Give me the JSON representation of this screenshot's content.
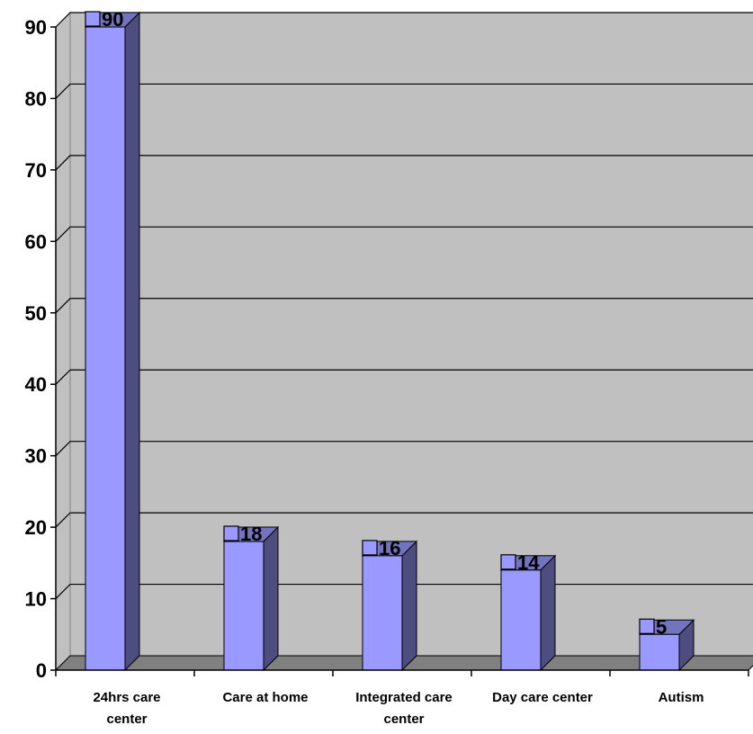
{
  "chart_data": {
    "type": "bar",
    "categories": [
      "24hrs care center",
      "Care at home",
      "Integrated care center",
      "Day care center",
      "Autism"
    ],
    "category_lines": [
      [
        "24hrs care",
        "center"
      ],
      [
        "Care at home"
      ],
      [
        "Integrated care",
        "center"
      ],
      [
        "Day care center"
      ],
      [
        "Autism"
      ]
    ],
    "values": [
      90,
      18,
      16,
      14,
      5
    ],
    "data_labels": [
      "90",
      "18",
      "16",
      "14",
      "5"
    ],
    "ylim": [
      0,
      90
    ],
    "yticks": [
      0,
      10,
      20,
      30,
      40,
      50,
      60,
      70,
      80,
      90
    ],
    "title": "",
    "xlabel": "",
    "ylabel": "",
    "grid": true,
    "legend": "none",
    "colors": {
      "bar_front": "#9999ff",
      "bar_side": "#4d4d80",
      "bar_top": "#7373bf",
      "wall": "#c0c0c0",
      "floor": "#808080",
      "gridline": "#000000",
      "marker": "#9999ff"
    }
  }
}
